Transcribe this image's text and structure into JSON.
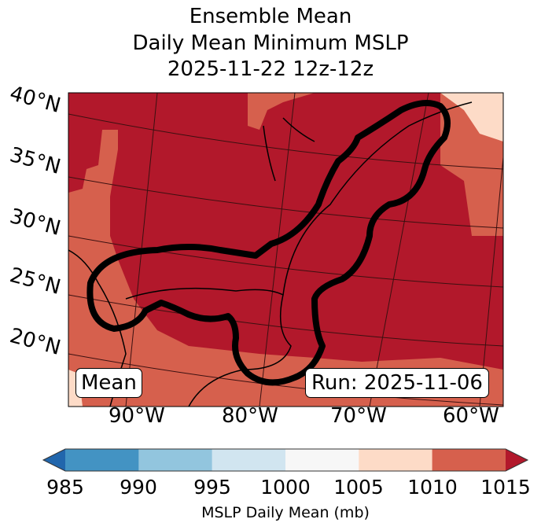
{
  "title": {
    "line1": "Ensemble Mean",
    "line2": "Daily Mean Minimum MSLP",
    "line3": "2025-11-22 12z-12z"
  },
  "map": {
    "lat_labels": [
      "40°N",
      "35°N",
      "30°N",
      "25°N",
      "20°N"
    ],
    "lon_labels": [
      "90°W",
      "80°W",
      "70°W",
      "60°W"
    ],
    "mean_box": "Mean",
    "run_box": "Run: 2025-11-06"
  },
  "colorbar": {
    "label": "MSLP Daily Mean (mb)",
    "ticks": [
      "985",
      "990",
      "995",
      "1000",
      "1005",
      "1010",
      "1015"
    ],
    "colors": [
      "#2166ac",
      "#4393c3",
      "#92c5de",
      "#d1e5f0",
      "#f7f7f7",
      "#fddbc7",
      "#d6604d",
      "#b2182b"
    ]
  }
}
